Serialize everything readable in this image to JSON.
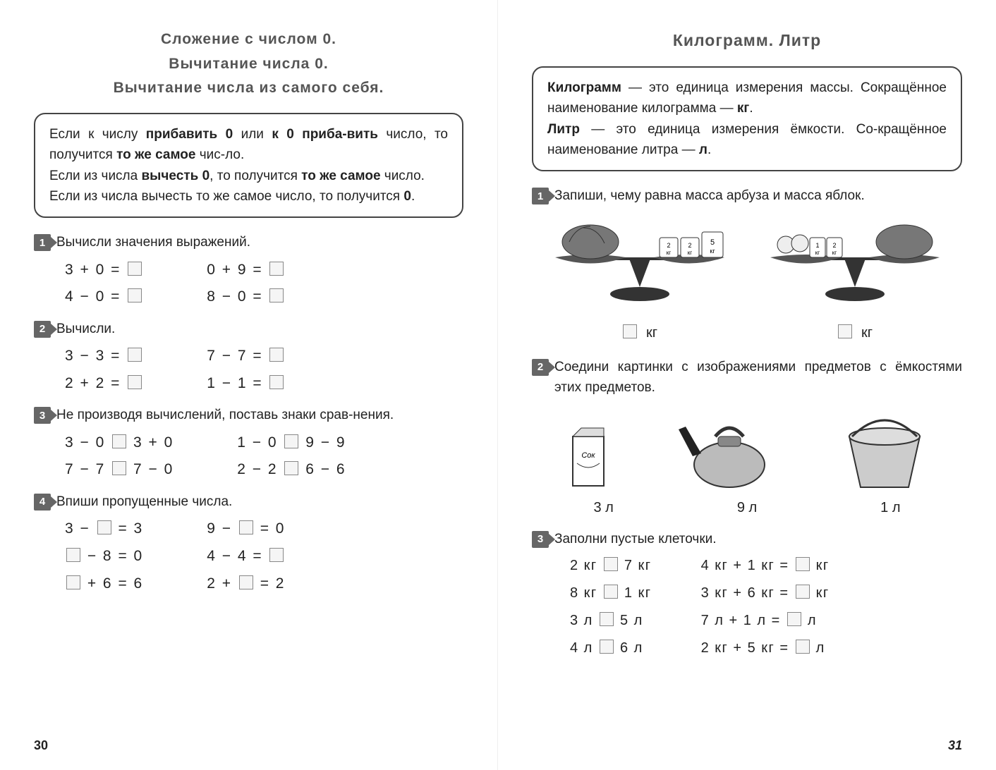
{
  "left": {
    "title": [
      "Сложение  с  числом  0.",
      "Вычитание  числа  0.",
      "Вычитание  числа  из  самого  себя."
    ],
    "rules_html": "Если  к  числу  <b>прибавить  0</b>  или  <b>к  0  приба-вить</b>  число,  то  получится  <b>то  же  самое</b>  чис-ло.<br>Если  из  числа  <b>вычесть  0</b>,  то  получится  <b>то  же самое</b>  число.<br>Если  из  числа  вычесть  то  же  самое  число,  то получится  <b>0</b>.",
    "tasks": [
      {
        "n": "1",
        "text": "Вычисли  значения  выражений.",
        "colA": [
          "3  +  0  =  ☐",
          "4  −  0  =  ☐"
        ],
        "colB": [
          "0  +  9  =  ☐",
          "8  −  0  =  ☐"
        ]
      },
      {
        "n": "2",
        "text": "Вычисли.",
        "colA": [
          "3  −  3  =  ☐",
          "2  +  2  =  ☐"
        ],
        "colB": [
          "7  −  7  =  ☐",
          "1  −  1  =  ☐"
        ]
      },
      {
        "n": "3",
        "text": "Не  производя  вычислений,  поставь  знаки  срав-нения.",
        "colA": [
          "3  −  0  ☐  3  +  0",
          "7  −  7  ☐  7  −  0"
        ],
        "colB": [
          "1  −  0  ☐  9  −  9",
          "2  −  2  ☐  6  −  6"
        ]
      },
      {
        "n": "4",
        "text": "Впиши  пропущенные  числа.",
        "colA": [
          "3  −  ☐  =  3",
          "☐  −  8  =  0",
          "☐  +  6  =  6"
        ],
        "colB": [
          "9  −  ☐  =  0",
          "4  −  4  =  ☐",
          "2  +  ☐  =  2"
        ]
      }
    ],
    "page": "30"
  },
  "right": {
    "title": "Килограмм.  Литр",
    "rules_html": "<b>Килограмм</b>  —  это  единица  измерения  массы. Сокращённое  наименование  килограмма  —  <b>кг</b>.<br><b>Литр</b>  —  это  единица  измерения  ёмкости.  Со-кращённое  наименование  литра  —  <b>л</b>.",
    "task1": {
      "n": "1",
      "text": "Запиши,  чему  равна  масса  арбуза  и  масса яблок.",
      "weights_left": [
        "2 кг",
        "2 кг",
        "5 кг"
      ],
      "weights_right": [
        "1 кг",
        "2 кг"
      ],
      "answers": [
        "☐  кг",
        "☐  кг"
      ]
    },
    "task2": {
      "n": "2",
      "text": "Соедини  картинки  с  изображениями  предметов с  ёмкостями  этих  предметов.",
      "items": [
        "juice-box",
        "kettle",
        "bucket"
      ],
      "caps": [
        "3  л",
        "9  л",
        "1  л"
      ]
    },
    "task3": {
      "n": "3",
      "text": "Заполни  пустые  клеточки.",
      "colA": [
        "2  кг  ☐  7  кг",
        "8  кг  ☐  1  кг",
        "3  л  ☐  5  л",
        "4  л  ☐  6  л"
      ],
      "colB": [
        "4  кг  +  1  кг  =  ☐  кг",
        "3  кг  +  6  кг  =  ☐  кг",
        "7  л  +  1  л  =  ☐  л",
        "2  кг  +  5  кг  =  ☐  л"
      ]
    },
    "page": "31"
  },
  "colors": {
    "text": "#222",
    "badge": "#666",
    "box_border": "#888"
  }
}
